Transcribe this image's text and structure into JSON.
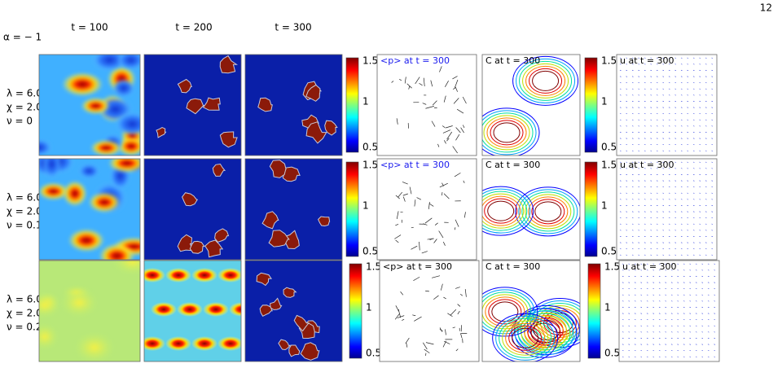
{
  "page_number": "12",
  "alpha_label": "α = − 1",
  "column_titles": [
    "t = 100",
    "t = 200",
    "t = 300"
  ],
  "rows": [
    {
      "params": [
        "λ = 6.0",
        "χ = 2.0",
        "ν = 0"
      ],
      "panel_titles": [
        "<p> at t = 300",
        "C at t = 300",
        "u at t = 300"
      ],
      "colorbar_ticks": [
        1.5,
        1,
        0.5
      ]
    },
    {
      "params": [
        "λ = 6.0",
        "χ = 2.0",
        "ν = 0.1"
      ],
      "panel_titles": [
        "<p> at t = 300",
        "C at t = 300",
        "u at t = 300"
      ],
      "colorbar_ticks": [
        1.5,
        1,
        0.5
      ]
    },
    {
      "params": [
        "λ = 6.0",
        "χ = 2.0",
        "ν = 0.2"
      ],
      "panel_titles": [
        "<p> at t = 300",
        "C at t = 300",
        "u at t = 300"
      ],
      "colorbar_ticks": [
        1.5,
        1,
        0.5
      ]
    }
  ]
}
